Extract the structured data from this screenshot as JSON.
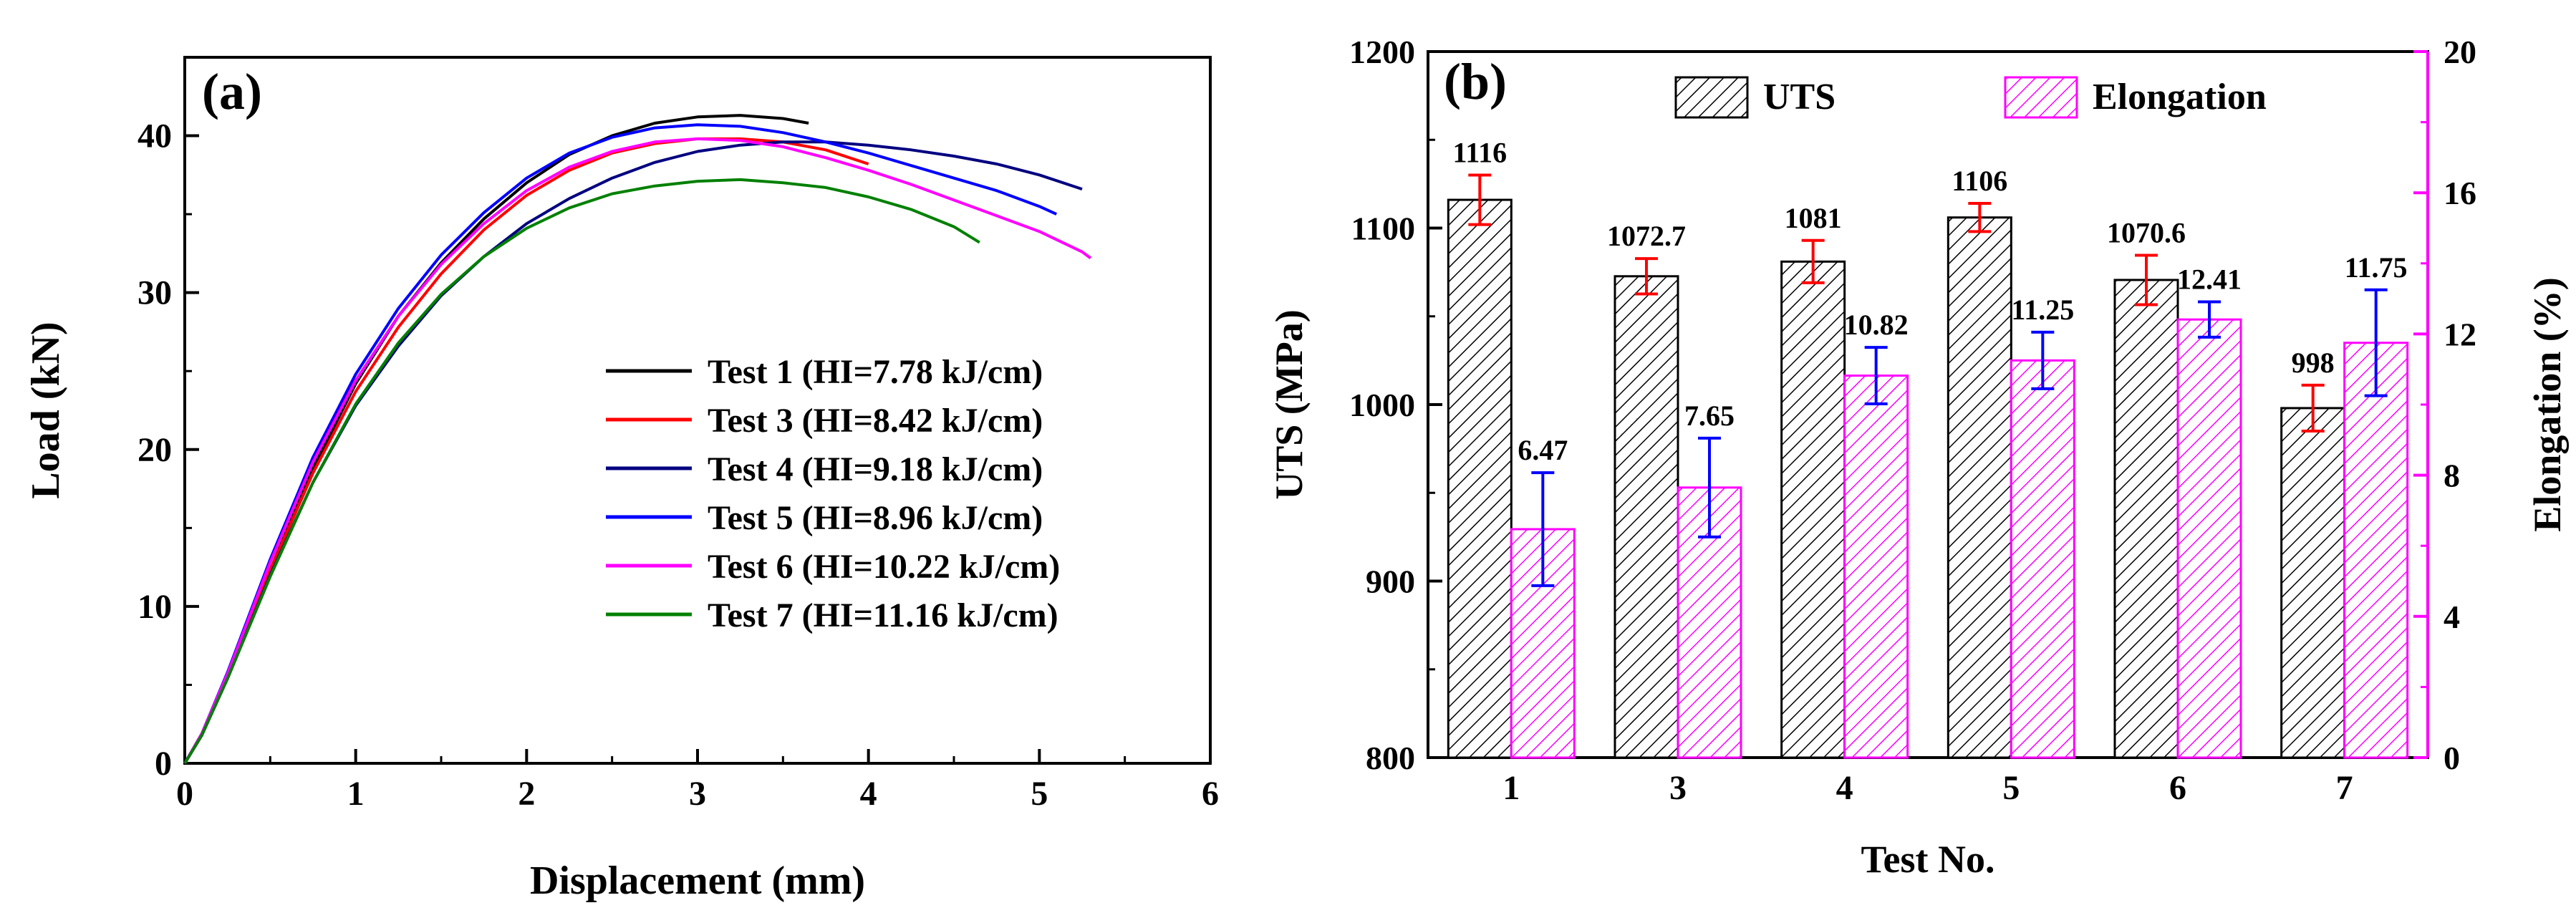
{
  "chart_data": [
    {
      "panel_label": "(a)",
      "type": "line",
      "xlabel": "Displacement (mm)",
      "ylabel": "Load (kN)",
      "xlim": [
        0,
        6
      ],
      "ylim": [
        0,
        45
      ],
      "xticks": [
        0,
        1,
        2,
        3,
        4,
        5,
        6
      ],
      "yticks": [
        0,
        10,
        20,
        30,
        40
      ],
      "legend_position": "center-right",
      "series": [
        {
          "name": "Test 1 (HI=7.78 kJ/cm)",
          "color": "#000000",
          "x": [
            0,
            0.1,
            0.25,
            0.5,
            0.75,
            1.0,
            1.25,
            1.5,
            1.75,
            2.0,
            2.25,
            2.5,
            2.75,
            3.0,
            3.25,
            3.5,
            3.65
          ],
          "y": [
            0,
            1.8,
            5.5,
            12.3,
            18.8,
            24.2,
            28.5,
            31.9,
            34.7,
            37.0,
            38.8,
            40.0,
            40.8,
            41.2,
            41.3,
            41.1,
            40.8
          ]
        },
        {
          "name": "Test 3 (HI=8.42 kJ/cm)",
          "color": "#ff0000",
          "x": [
            0,
            0.1,
            0.25,
            0.5,
            0.75,
            1.0,
            1.25,
            1.5,
            1.75,
            2.0,
            2.25,
            2.5,
            2.75,
            3.0,
            3.25,
            3.5,
            3.75,
            4.0
          ],
          "y": [
            0,
            1.8,
            5.5,
            12.3,
            18.5,
            23.7,
            27.8,
            31.2,
            34.0,
            36.2,
            37.8,
            38.9,
            39.5,
            39.8,
            39.8,
            39.6,
            39.1,
            38.2
          ]
        },
        {
          "name": "Test 4 (HI=9.18 kJ/cm)",
          "color": "#000080",
          "x": [
            0,
            0.1,
            0.25,
            0.5,
            0.75,
            1.0,
            1.25,
            1.5,
            1.75,
            2.0,
            2.25,
            2.5,
            2.75,
            3.0,
            3.25,
            3.5,
            3.75,
            4.0,
            4.25,
            4.5,
            4.75,
            5.0,
            5.25
          ],
          "y": [
            0,
            1.8,
            5.4,
            12.0,
            17.9,
            22.8,
            26.6,
            29.8,
            32.3,
            34.4,
            36.0,
            37.3,
            38.3,
            39.0,
            39.4,
            39.6,
            39.6,
            39.4,
            39.1,
            38.7,
            38.2,
            37.5,
            36.6
          ]
        },
        {
          "name": "Test 5 (HI=8.96 kJ/cm)",
          "color": "#0000ff",
          "x": [
            0,
            0.1,
            0.25,
            0.5,
            0.75,
            1.0,
            1.25,
            1.5,
            1.75,
            2.0,
            2.25,
            2.5,
            2.75,
            3.0,
            3.25,
            3.5,
            3.75,
            4.0,
            4.25,
            4.5,
            4.75,
            5.0,
            5.1
          ],
          "y": [
            0,
            1.9,
            5.8,
            13.0,
            19.5,
            24.8,
            29.0,
            32.4,
            35.1,
            37.3,
            38.9,
            39.9,
            40.5,
            40.7,
            40.6,
            40.2,
            39.6,
            38.9,
            38.1,
            37.3,
            36.5,
            35.5,
            35.0
          ]
        },
        {
          "name": "Test 6 (HI=10.22 kJ/cm)",
          "color": "#ff00ff",
          "x": [
            0,
            0.1,
            0.25,
            0.5,
            0.75,
            1.0,
            1.25,
            1.5,
            1.75,
            2.0,
            2.25,
            2.5,
            2.75,
            3.0,
            3.25,
            3.5,
            3.75,
            4.0,
            4.25,
            4.5,
            4.75,
            5.0,
            5.25,
            5.3
          ],
          "y": [
            0,
            1.9,
            5.7,
            12.8,
            19.2,
            24.4,
            28.5,
            31.8,
            34.4,
            36.5,
            38.0,
            39.0,
            39.6,
            39.8,
            39.7,
            39.3,
            38.6,
            37.8,
            36.9,
            35.9,
            34.9,
            33.9,
            32.6,
            32.2
          ]
        },
        {
          "name": "Test 7 (HI=11.16 kJ/cm)",
          "color": "#008000",
          "x": [
            0,
            0.1,
            0.25,
            0.5,
            0.75,
            1.0,
            1.25,
            1.5,
            1.75,
            2.0,
            2.25,
            2.5,
            2.75,
            3.0,
            3.25,
            3.5,
            3.75,
            4.0,
            4.25,
            4.5,
            4.65
          ],
          "y": [
            0,
            1.8,
            5.4,
            11.9,
            17.9,
            22.9,
            26.8,
            29.9,
            32.3,
            34.1,
            35.4,
            36.3,
            36.8,
            37.1,
            37.2,
            37.0,
            36.7,
            36.1,
            35.3,
            34.2,
            33.2
          ]
        }
      ]
    },
    {
      "panel_label": "(b)",
      "type": "bar",
      "xlabel": "Test No.",
      "ylabel": "UTS (MPa)",
      "y2label": "Elongation (%)",
      "categories": [
        "1",
        "3",
        "4",
        "5",
        "6",
        "7"
      ],
      "ylim": [
        800,
        1200
      ],
      "yticks": [
        800,
        900,
        1000,
        1100,
        1200
      ],
      "y2lim": [
        0,
        20
      ],
      "y2ticks": [
        0,
        4,
        8,
        12,
        16,
        20
      ],
      "legend_position": "top",
      "series": [
        {
          "name": "UTS",
          "axis": "left",
          "color": "#000000",
          "hatch_color": "#000000",
          "fill": "#ffffff",
          "values": [
            1116,
            1072.7,
            1081,
            1106,
            1070.6,
            998
          ],
          "labels": [
            "1116",
            "1072.7",
            "1081",
            "1106",
            "1070.6",
            "998"
          ],
          "errors": [
            14,
            10,
            12,
            8,
            14,
            13
          ],
          "error_color": "#ff0000"
        },
        {
          "name": "Elongation",
          "axis": "right",
          "color": "#ff00ff",
          "hatch_color": "#ff00ff",
          "fill": "#ffffff",
          "values": [
            6.47,
            7.65,
            10.82,
            11.25,
            12.41,
            11.75
          ],
          "labels": [
            "6.47",
            "7.65",
            "10.82",
            "11.25",
            "12.41",
            "11.75"
          ],
          "errors": [
            1.6,
            1.4,
            0.8,
            0.8,
            0.5,
            1.5
          ],
          "error_color": "#0000ff"
        }
      ]
    }
  ]
}
